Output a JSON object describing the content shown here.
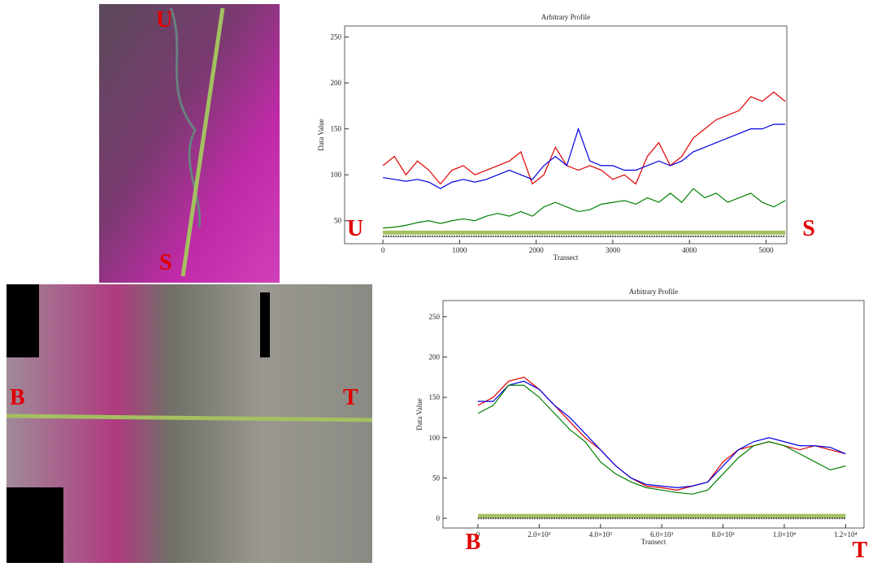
{
  "chart_data": [
    {
      "type": "line",
      "title": "Arbitrary Profile",
      "x_label": "Transect",
      "y_label": "Data Value",
      "annotations": [
        "U",
        "S"
      ],
      "x": [
        0,
        150,
        300,
        450,
        600,
        750,
        900,
        1050,
        1200,
        1350,
        1500,
        1650,
        1800,
        1950,
        2100,
        2250,
        2400,
        2550,
        2700,
        2850,
        3000,
        3150,
        3300,
        3450,
        3600,
        3750,
        3900,
        4050,
        4200,
        4350,
        4500,
        4650,
        4800,
        4950,
        5100,
        5250
      ],
      "series": [
        {
          "color": "#e00000",
          "values": [
            110,
            120,
            100,
            115,
            105,
            90,
            105,
            110,
            100,
            105,
            110,
            115,
            125,
            90,
            100,
            130,
            110,
            105,
            110,
            105,
            95,
            100,
            90,
            120,
            135,
            110,
            120,
            140,
            150,
            160,
            165,
            170,
            185,
            180,
            190,
            180
          ]
        },
        {
          "color": "#0000e0",
          "values": [
            97,
            95,
            93,
            95,
            92,
            85,
            92,
            95,
            92,
            95,
            100,
            105,
            100,
            95,
            110,
            120,
            110,
            150,
            115,
            110,
            110,
            105,
            105,
            110,
            115,
            110,
            115,
            125,
            130,
            135,
            140,
            145,
            150,
            150,
            155,
            155
          ]
        },
        {
          "color": "#008000",
          "values": [
            42,
            43,
            45,
            48,
            50,
            47,
            50,
            52,
            50,
            55,
            58,
            55,
            60,
            55,
            65,
            70,
            65,
            60,
            62,
            68,
            70,
            72,
            68,
            75,
            70,
            80,
            70,
            85,
            75,
            80,
            70,
            75,
            80,
            70,
            65,
            72
          ]
        },
        {
          "color": "#a4c060",
          "values": [
            37,
            37,
            37,
            37,
            37,
            37,
            37,
            37,
            37,
            37,
            37,
            37,
            37,
            37,
            37,
            37,
            37,
            37,
            37,
            37,
            37,
            37,
            37,
            37,
            37,
            37,
            37,
            37,
            37,
            37,
            37,
            37,
            37,
            37,
            37,
            37
          ]
        },
        {
          "color": "#555555",
          "values": [
            33,
            33,
            33,
            33,
            33,
            33,
            33,
            33,
            33,
            33,
            33,
            33,
            33,
            33,
            33,
            33,
            33,
            33,
            33,
            33,
            33,
            33,
            33,
            33,
            33,
            33,
            33,
            33,
            33,
            33,
            33,
            33,
            33,
            33,
            33,
            33
          ]
        }
      ],
      "xlim": [
        -500,
        5270
      ],
      "xticks": [
        0,
        1000,
        2000,
        3000,
        4000,
        5000
      ],
      "ylim": [
        25,
        262
      ],
      "yticks": [
        50,
        100,
        150,
        200,
        250
      ]
    },
    {
      "type": "line",
      "title": "Arbitrary Profile",
      "x_label": "Transect",
      "y_label": "Data Value",
      "annotations": [
        "B",
        "T"
      ],
      "x": [
        0,
        500,
        1000,
        1500,
        2000,
        2500,
        3000,
        3500,
        4000,
        4500,
        5000,
        5500,
        6000,
        6500,
        7000,
        7500,
        8000,
        8500,
        9000,
        9500,
        10000,
        10500,
        11000,
        11500,
        12000
      ],
      "series": [
        {
          "color": "#e00000",
          "values": [
            140,
            150,
            170,
            175,
            160,
            140,
            120,
            100,
            85,
            65,
            50,
            40,
            38,
            35,
            40,
            45,
            70,
            85,
            90,
            95,
            90,
            85,
            90,
            85,
            80
          ]
        },
        {
          "color": "#0000e0",
          "values": [
            145,
            145,
            165,
            170,
            160,
            140,
            125,
            105,
            85,
            65,
            50,
            42,
            40,
            38,
            40,
            45,
            65,
            85,
            95,
            100,
            95,
            90,
            90,
            88,
            80
          ]
        },
        {
          "color": "#008000",
          "values": [
            130,
            140,
            165,
            165,
            150,
            130,
            110,
            95,
            70,
            55,
            45,
            38,
            35,
            32,
            30,
            35,
            55,
            75,
            90,
            95,
            90,
            80,
            70,
            60,
            65
          ]
        },
        {
          "color": "#a4c060",
          "values": [
            3,
            3,
            3,
            3,
            3,
            3,
            3,
            3,
            3,
            3,
            3,
            3,
            3,
            3,
            3,
            3,
            3,
            3,
            3,
            3,
            3,
            3,
            3,
            3,
            3
          ]
        },
        {
          "color": "#555555",
          "values": [
            0,
            0,
            0,
            0,
            0,
            0,
            0,
            0,
            0,
            0,
            0,
            0,
            0,
            0,
            0,
            0,
            0,
            0,
            0,
            0,
            0,
            0,
            0,
            0,
            0
          ]
        }
      ],
      "xlim": [
        -1140,
        12600
      ],
      "xticks": [
        0,
        {
          "value": 2000,
          "label": "2.0×10³"
        },
        {
          "value": 4000,
          "label": "4.0×10³"
        },
        {
          "value": 6000,
          "label": "6.0×10³"
        },
        {
          "value": 8000,
          "label": "8.0×10³"
        },
        {
          "value": 10000,
          "label": "1.0×10⁴"
        },
        {
          "value": 12000,
          "label": "1.2×10⁴"
        }
      ],
      "ylim": [
        -12,
        270
      ],
      "yticks": [
        0,
        50,
        100,
        150,
        200,
        250
      ]
    }
  ]
}
